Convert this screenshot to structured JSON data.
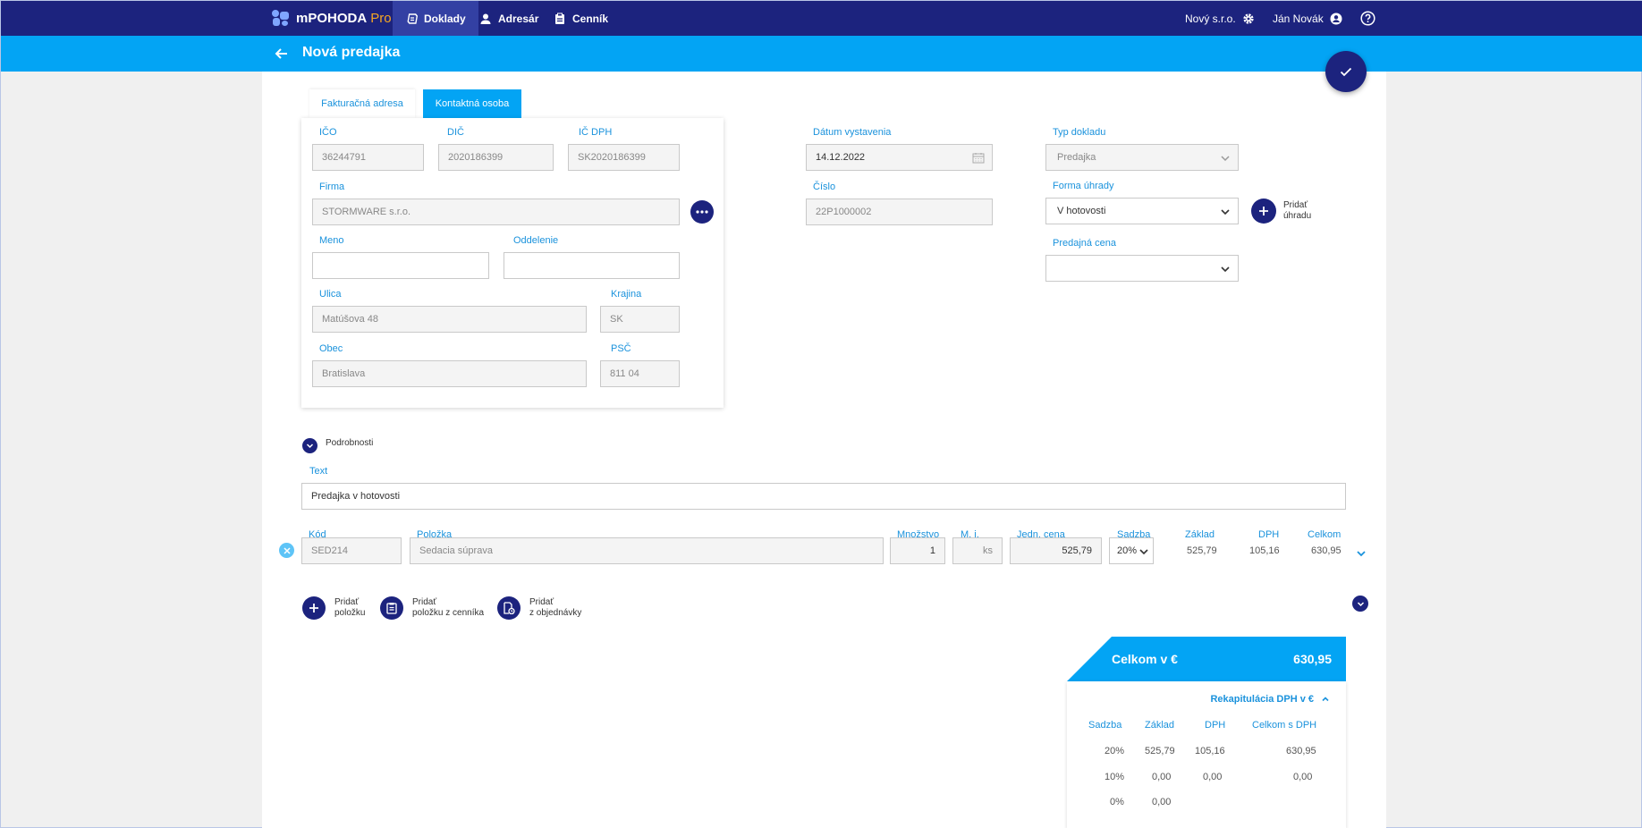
{
  "app": {
    "name": "mPOHODA",
    "edition": "Pro",
    "nav": [
      {
        "label": "Doklady",
        "icon": "documents-icon",
        "active": true
      },
      {
        "label": "Adresár",
        "icon": "person-icon",
        "active": false
      },
      {
        "label": "Cenník",
        "icon": "clipboard-icon",
        "active": false
      }
    ],
    "company": "Nový s.r.o.",
    "user": "Ján Novák"
  },
  "page": {
    "title": "Nová predajka"
  },
  "address": {
    "tabs": [
      "Fakturačná adresa",
      "Kontaktná osoba"
    ],
    "ico_label": "IČO",
    "ico": "36244791",
    "dic_label": "DIČ",
    "dic": "2020186399",
    "icdph_label": "IČ DPH",
    "icdph": "SK2020186399",
    "firma_label": "Firma",
    "firma": "STORMWARE s.r.o.",
    "meno_label": "Meno",
    "meno": "",
    "oddelenie_label": "Oddelenie",
    "oddelenie": "",
    "ulica_label": "Ulica",
    "ulica": "Matúšova 48",
    "krajina_label": "Krajina",
    "krajina": "SK",
    "obec_label": "Obec",
    "obec": "Bratislava",
    "psc_label": "PSČ",
    "psc": "811 04"
  },
  "document": {
    "datum_label": "Dátum vystavenia",
    "datum": "14.12.2022",
    "cislo_label": "Číslo",
    "cislo": "22P1000002",
    "typ_label": "Typ dokladu",
    "typ": "Predajka",
    "forma_label": "Forma úhrady",
    "forma": "V hotovosti",
    "pridat_uhradu_1": "Pridať",
    "pridat_uhradu_2": "úhradu",
    "cena_label": "Predajná cena",
    "cena": ""
  },
  "details": {
    "toggle_label": "Podrobnosti",
    "text_label": "Text",
    "text": "Predajka v hotovosti"
  },
  "items": {
    "headers": {
      "kod": "Kód",
      "polozka": "Položka",
      "mnozstvo": "Množstvo",
      "mj": "M. j.",
      "jedn_cena": "Jedn. cena",
      "sadzba": "Sadzba",
      "zaklad": "Základ",
      "dph": "DPH",
      "celkom": "Celkom"
    },
    "rows": [
      {
        "kod": "SED214",
        "polozka": "Sedacia súprava",
        "mnozstvo": "1",
        "mj": "ks",
        "jedn_cena": "525,79",
        "sadzba": "20%",
        "zaklad": "525,79",
        "dph": "105,16",
        "celkom": "630,95"
      }
    ],
    "actions": [
      {
        "line1": "Pridať",
        "line2": "položku",
        "icon": "plus-icon"
      },
      {
        "line1": "Pridať",
        "line2": "položku z cenníka",
        "icon": "clipboard-list-icon"
      },
      {
        "line1": "Pridať",
        "line2": "z objednávky",
        "icon": "order-document-icon"
      }
    ]
  },
  "totals": {
    "label": "Celkom v €",
    "value": "630,95",
    "recap_title": "Rekapitulácia DPH v €",
    "recap_headers": [
      "Sadzba",
      "Základ",
      "DPH",
      "Celkom s DPH"
    ],
    "recap_rows": [
      {
        "sadzba": "20%",
        "zaklad": "525,79",
        "dph": "105,16",
        "celkom": "630,95"
      },
      {
        "sadzba": "10%",
        "zaklad": "0,00",
        "dph": "0,00",
        "celkom": "0,00"
      },
      {
        "sadzba": "0%",
        "zaklad": "0,00",
        "dph": "",
        "celkom": ""
      }
    ]
  },
  "colors": {
    "navy": "#1c237e",
    "accent_blue": "#03a4f4",
    "label_blue": "#1a92dc",
    "pro_orange": "#f5a623"
  }
}
